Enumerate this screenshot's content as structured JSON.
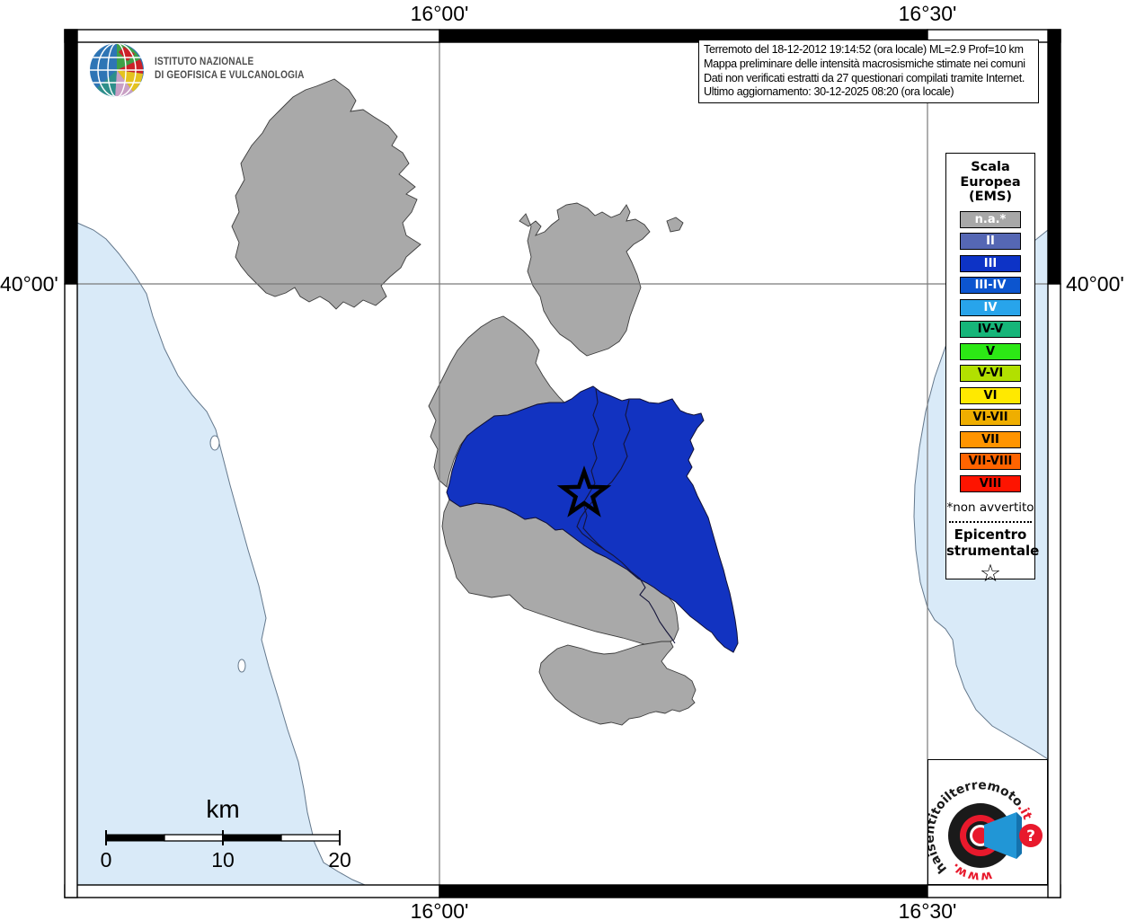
{
  "header": {
    "ingv_line1": "ISTITUTO NAZIONALE",
    "ingv_line2": "DI GEOFISICA E VULCANOLOGIA"
  },
  "info_box": {
    "lines": [
      "Terremoto del 18-12-2012 19:14:52 (ora locale) ML=2.9 Prof=10 km",
      "Mappa preliminare delle intensità macrosismiche stimate nei comuni",
      "Dati non verificati estratti da 27 questionari compilati tramite Internet.",
      "Ultimo aggiornamento: 30-12-2025 08:20 (ora locale)"
    ]
  },
  "legend": {
    "title_lines": [
      "Scala",
      "Europea",
      "(EMS)"
    ],
    "items": [
      {
        "label": "n.a.*",
        "color": "#a8a8a8",
        "text_color": "#ffffff"
      },
      {
        "label": "II",
        "color": "#5567b4",
        "text_color": "#ffffff"
      },
      {
        "label": "III",
        "color": "#0d33c6",
        "text_color": "#ffffff"
      },
      {
        "label": "III-IV",
        "color": "#0c55cf",
        "text_color": "#ffffff"
      },
      {
        "label": "IV",
        "color": "#28a4eb",
        "text_color": "#ffffff"
      },
      {
        "label": "IV-V",
        "color": "#16b579",
        "text_color": "#000000"
      },
      {
        "label": "V",
        "color": "#2ce815",
        "text_color": "#000000"
      },
      {
        "label": "V-VI",
        "color": "#b2e000",
        "text_color": "#000000"
      },
      {
        "label": "VI",
        "color": "#ffe900",
        "text_color": "#000000"
      },
      {
        "label": "VI-VII",
        "color": "#efae00",
        "text_color": "#000000"
      },
      {
        "label": "VII",
        "color": "#ff9400",
        "text_color": "#000000"
      },
      {
        "label": "VII-VIII",
        "color": "#ff6400",
        "text_color": "#000000"
      },
      {
        "label": "VIII",
        "color": "#fe1400",
        "text_color": "#000000"
      }
    ],
    "footnote": "*non avvertito",
    "epicenter_title_lines": [
      "Epicentro",
      "strumentale"
    ],
    "epicenter_symbol": "☆"
  },
  "map": {
    "coords": {
      "top_left_lon": "16°00'",
      "top_right_lon": "16°30'",
      "bottom_left_lon": "16°00'",
      "bottom_right_lon": "16°30'",
      "left_lat": "40°00'",
      "right_lat": "40°00'"
    },
    "colors": {
      "sea": "#d9eaf8",
      "not_felt_gray": "#a9a9a9",
      "intensity_iii_blue": "#1233c1",
      "land": "#ffffff"
    },
    "epicenter": {
      "symbol": "star",
      "intensity_region": "III"
    }
  },
  "scale_bar": {
    "unit": "km",
    "ticks": [
      "0",
      "10",
      "20"
    ]
  },
  "watermark": {
    "text_arc": "haisentitoilterremoto",
    "text_arc_suffix": ".it",
    "text_bottom": "www.",
    "question_mark": "?"
  }
}
